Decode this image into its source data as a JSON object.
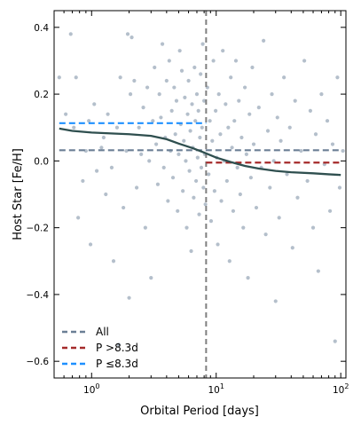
{
  "chart_data": {
    "type": "scatter",
    "xlabel": "Orbital Period [days]",
    "ylabel": "Host Star [Fe/H]",
    "x_scale": "log",
    "xlim": [
      0.5,
      110
    ],
    "ylim": [
      -0.65,
      0.45
    ],
    "x_ticks": [
      1,
      10,
      100
    ],
    "x_tick_labels": [
      "10^0",
      "10^1",
      "10^2"
    ],
    "y_ticks": [
      -0.6,
      -0.4,
      -0.2,
      0.0,
      0.2,
      0.4
    ],
    "y_tick_labels": [
      "−0.6",
      "−0.4",
      "−0.2",
      "0.0",
      "0.2",
      "0.4"
    ],
    "grid": false,
    "legend_position": "lower-left",
    "legend": [
      {
        "label": "All",
        "color": "#6b7f95",
        "dash": "dashed"
      },
      {
        "label": "P >8.3d",
        "color": "#a52a2a",
        "dash": "dashed"
      },
      {
        "label": "P ≤8.3d",
        "color": "#1e90ff",
        "dash": "dashed"
      }
    ],
    "reference_lines": [
      {
        "orientation": "vertical",
        "x": 8.3,
        "color": "#7f7f7f",
        "style": "dashed"
      },
      {
        "orientation": "horizontal",
        "y": 0.032,
        "x_range": [
          0.55,
          100
        ],
        "color": "#6b7f95",
        "style": "dashed",
        "series": "All"
      },
      {
        "orientation": "horizontal",
        "y": -0.005,
        "x_range": [
          8.3,
          100
        ],
        "color": "#a52a2a",
        "style": "dashed",
        "series": "P >8.3d"
      },
      {
        "orientation": "horizontal",
        "y": 0.113,
        "x_range": [
          0.55,
          8.3
        ],
        "color": "#1e90ff",
        "style": "dashed",
        "series": "P ≤8.3d"
      }
    ],
    "trend_line": {
      "color": "#2f4f4f",
      "points": [
        [
          0.55,
          0.097
        ],
        [
          0.7,
          0.09
        ],
        [
          1.0,
          0.085
        ],
        [
          1.5,
          0.082
        ],
        [
          2.0,
          0.08
        ],
        [
          3.0,
          0.075
        ],
        [
          4.0,
          0.065
        ],
        [
          5.0,
          0.052
        ],
        [
          6.5,
          0.038
        ],
        [
          8.0,
          0.025
        ],
        [
          10.0,
          0.01
        ],
        [
          13.0,
          -0.003
        ],
        [
          17.0,
          -0.015
        ],
        [
          22.0,
          -0.023
        ],
        [
          30.0,
          -0.03
        ],
        [
          40.0,
          -0.034
        ],
        [
          60.0,
          -0.037
        ],
        [
          80.0,
          -0.04
        ],
        [
          100.0,
          -0.042
        ]
      ]
    },
    "points_color": "#a7b4c2",
    "points": [
      [
        0.55,
        0.25
      ],
      [
        0.62,
        0.14
      ],
      [
        0.68,
        0.38
      ],
      [
        0.72,
        0.1
      ],
      [
        0.75,
        0.25
      ],
      [
        0.78,
        -0.17
      ],
      [
        0.85,
        -0.06
      ],
      [
        0.9,
        0.03
      ],
      [
        0.95,
        0.12
      ],
      [
        0.98,
        -0.25
      ],
      [
        1.05,
        0.17
      ],
      [
        1.1,
        -0.03
      ],
      [
        1.2,
        0.04
      ],
      [
        1.25,
        0.07
      ],
      [
        1.3,
        -0.1
      ],
      [
        1.35,
        0.14
      ],
      [
        1.45,
        -0.02
      ],
      [
        1.5,
        -0.3
      ],
      [
        1.6,
        0.1
      ],
      [
        1.65,
        -0.55
      ],
      [
        1.7,
        0.25
      ],
      [
        1.8,
        -0.14
      ],
      [
        1.9,
        0.03
      ],
      [
        1.95,
        0.38
      ],
      [
        2.0,
        -0.41
      ],
      [
        2.05,
        0.2
      ],
      [
        2.1,
        0.37
      ],
      [
        2.2,
        0.24
      ],
      [
        2.3,
        -0.08
      ],
      [
        2.4,
        0.1
      ],
      [
        2.5,
        0.02
      ],
      [
        2.6,
        0.16
      ],
      [
        2.7,
        -0.2
      ],
      [
        2.8,
        0.22
      ],
      [
        2.9,
        0.0
      ],
      [
        3.0,
        -0.35
      ],
      [
        3.1,
        0.12
      ],
      [
        3.2,
        0.28
      ],
      [
        3.3,
        0.05
      ],
      [
        3.4,
        -0.07
      ],
      [
        3.5,
        0.2
      ],
      [
        3.6,
        0.13
      ],
      [
        3.7,
        0.35
      ],
      [
        3.8,
        -0.02
      ],
      [
        3.9,
        0.07
      ],
      [
        4.0,
        0.24
      ],
      [
        4.1,
        -0.12
      ],
      [
        4.2,
        0.3
      ],
      [
        4.3,
        0.03
      ],
      [
        4.4,
        0.15
      ],
      [
        4.5,
        -0.05
      ],
      [
        4.6,
        0.22
      ],
      [
        4.7,
        0.08
      ],
      [
        4.8,
        0.18
      ],
      [
        4.9,
        -0.15
      ],
      [
        5.0,
        0.02
      ],
      [
        5.1,
        0.33
      ],
      [
        5.2,
        0.11
      ],
      [
        5.3,
        0.27
      ],
      [
        5.4,
        -0.09
      ],
      [
        5.5,
        0.06
      ],
      [
        5.6,
        0.19
      ],
      [
        5.7,
        0.0
      ],
      [
        5.8,
        -0.2
      ],
      [
        5.9,
        0.14
      ],
      [
        6.0,
        0.24
      ],
      [
        6.1,
        -0.03
      ],
      [
        6.2,
        0.09
      ],
      [
        6.3,
        -0.27
      ],
      [
        6.4,
        0.17
      ],
      [
        6.5,
        0.04
      ],
      [
        6.6,
        -0.11
      ],
      [
        6.7,
        0.28
      ],
      [
        6.8,
        0.12
      ],
      [
        6.9,
        -0.06
      ],
      [
        7.0,
        0.2
      ],
      [
        7.1,
        0.01
      ],
      [
        7.2,
        0.15
      ],
      [
        7.3,
        -0.16
      ],
      [
        7.4,
        0.07
      ],
      [
        7.5,
        0.26
      ],
      [
        7.6,
        -0.02
      ],
      [
        7.7,
        0.1
      ],
      [
        7.8,
        0.35
      ],
      [
        7.9,
        -0.08
      ],
      [
        8.0,
        0.18
      ],
      [
        8.1,
        0.02
      ],
      [
        8.2,
        -0.13
      ],
      [
        8.5,
        0.22
      ],
      [
        8.7,
        -0.04
      ],
      [
        8.9,
        0.12
      ],
      [
        9.1,
        -0.18
      ],
      [
        9.3,
        0.06
      ],
      [
        9.5,
        0.3
      ],
      [
        9.7,
        -0.09
      ],
      [
        9.9,
        0.15
      ],
      [
        10.1,
        0.01
      ],
      [
        10.3,
        -0.25
      ],
      [
        10.5,
        0.2
      ],
      [
        10.8,
        0.08
      ],
      [
        11.0,
        -0.12
      ],
      [
        11.3,
        0.33
      ],
      [
        11.6,
        0.0
      ],
      [
        11.9,
        0.17
      ],
      [
        12.2,
        -0.06
      ],
      [
        12.5,
        0.1
      ],
      [
        12.8,
        -0.3
      ],
      [
        13.1,
        0.25
      ],
      [
        13.4,
        0.04
      ],
      [
        13.7,
        -0.15
      ],
      [
        14.0,
        0.12
      ],
      [
        14.4,
        0.3
      ],
      [
        14.8,
        -0.02
      ],
      [
        15.2,
        0.18
      ],
      [
        15.6,
        -0.1
      ],
      [
        16.0,
        0.07
      ],
      [
        16.5,
        -0.2
      ],
      [
        17.0,
        0.22
      ],
      [
        17.5,
        0.02
      ],
      [
        18.0,
        -0.35
      ],
      [
        18.5,
        0.14
      ],
      [
        19.0,
        -0.05
      ],
      [
        19.5,
        0.28
      ],
      [
        20.0,
        0.05
      ],
      [
        21.0,
        -0.14
      ],
      [
        22.0,
        0.16
      ],
      [
        23.0,
        -0.02
      ],
      [
        24.0,
        0.36
      ],
      [
        25.0,
        -0.22
      ],
      [
        26.0,
        0.09
      ],
      [
        27.0,
        -0.08
      ],
      [
        28.0,
        0.2
      ],
      [
        29.0,
        0.0
      ],
      [
        30.0,
        -0.42
      ],
      [
        31.0,
        0.13
      ],
      [
        32.0,
        -0.17
      ],
      [
        33.0,
        0.06
      ],
      [
        35.0,
        0.25
      ],
      [
        37.0,
        -0.04
      ],
      [
        39.0,
        0.1
      ],
      [
        41.0,
        -0.26
      ],
      [
        43.0,
        0.18
      ],
      [
        45.0,
        -0.11
      ],
      [
        48.0,
        0.03
      ],
      [
        51.0,
        0.3
      ],
      [
        54.0,
        -0.06
      ],
      [
        57.0,
        0.15
      ],
      [
        60.0,
        -0.2
      ],
      [
        63.0,
        0.08
      ],
      [
        66.0,
        -0.33
      ],
      [
        70.0,
        0.2
      ],
      [
        74.0,
        -0.01
      ],
      [
        78.0,
        0.12
      ],
      [
        82.0,
        -0.15
      ],
      [
        86.0,
        0.05
      ],
      [
        90.0,
        -0.54
      ],
      [
        94.0,
        0.25
      ],
      [
        98.0,
        -0.08
      ],
      [
        104.0,
        0.03
      ]
    ]
  }
}
